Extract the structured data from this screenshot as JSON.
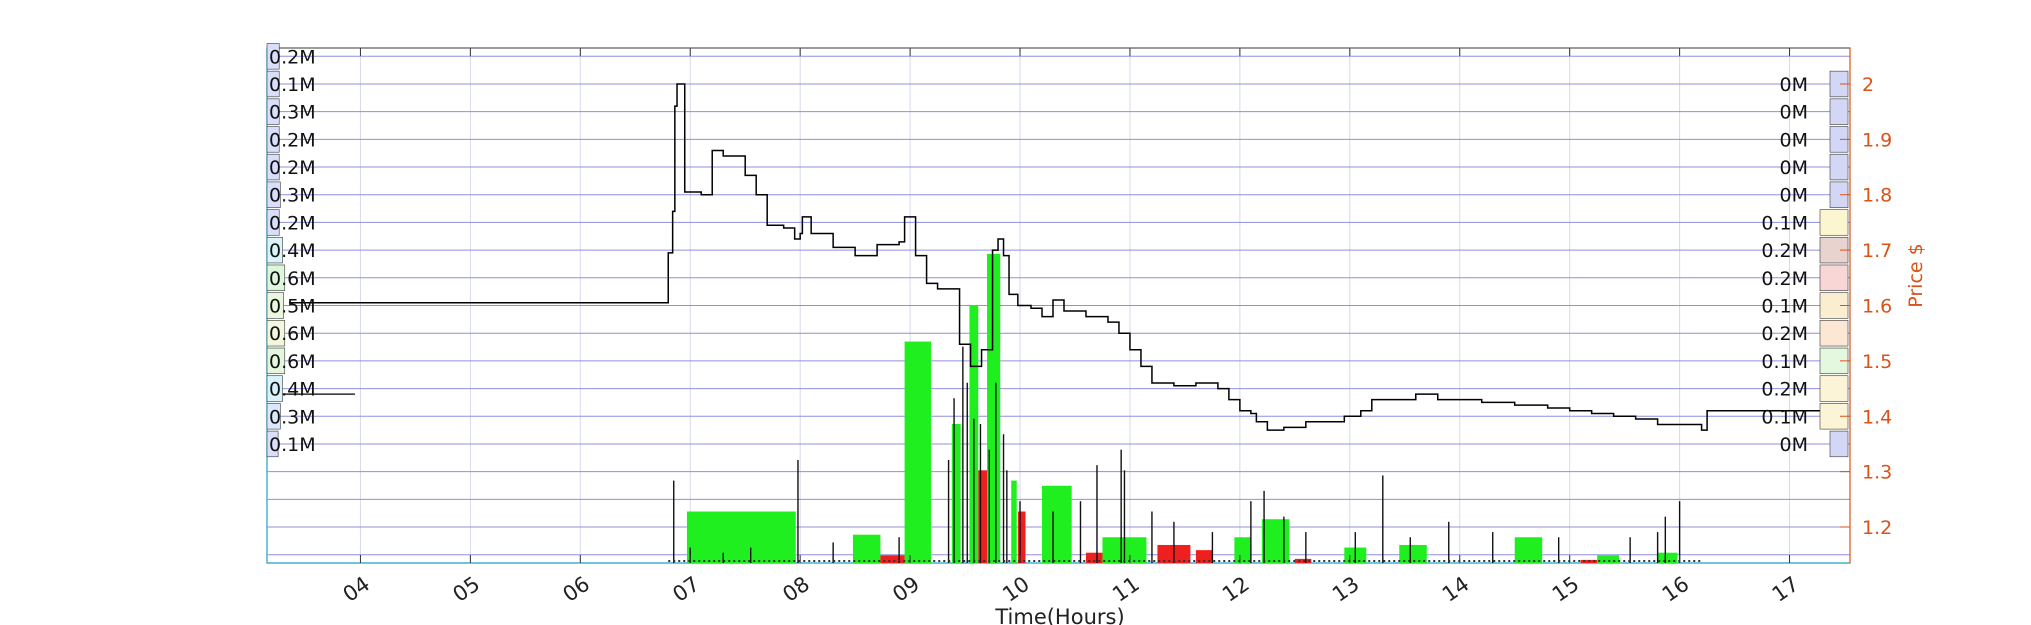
{
  "chart_data": {
    "type": "line",
    "xlabel": "Time(Hours)",
    "ylabel_right": "Price $",
    "grid": true,
    "x_range": [
      3.15,
      17.55
    ],
    "y_range": [
      1.135,
      2.065
    ],
    "x_ticks": [
      "04",
      "05",
      "06",
      "07",
      "08",
      "09",
      "10",
      "11",
      "12",
      "13",
      "14",
      "15",
      "16",
      "17"
    ],
    "y_ticks": [
      "2",
      "1.9",
      "1.8",
      "1.7",
      "1.6",
      "1.5",
      "1.4",
      "1.3",
      "1.2"
    ],
    "colors": {
      "price": "#000000",
      "buy_volume": "#1fef1f",
      "sell_volume": "#ef1f1f",
      "grid": "#8f8fe0",
      "right_axis": "#d95319",
      "frame": "#3a3a3a",
      "left_axis": "#1ba1c9"
    },
    "price_levels": [
      2.05,
      2.0,
      1.95,
      1.9,
      1.85,
      1.8,
      1.75,
      1.7,
      1.65,
      1.6,
      1.55,
      1.5,
      1.45,
      1.4,
      1.35,
      1.3,
      1.25,
      1.2,
      1.15
    ],
    "left_volume_labels": [
      {
        "price": 2.05,
        "label": "0.2M",
        "share": 0.02,
        "color": "#d9defa"
      },
      {
        "price": 2.0,
        "label": "0.1M",
        "share": 0.02,
        "color": "#d9defa"
      },
      {
        "price": 1.95,
        "label": "0.3M",
        "share": 0.02,
        "color": "#d9defa"
      },
      {
        "price": 1.9,
        "label": "0.2M",
        "share": 0.02,
        "color": "#d9defa"
      },
      {
        "price": 1.85,
        "label": "0.2M",
        "share": 0.02,
        "color": "#d9defa"
      },
      {
        "price": 1.8,
        "label": "0.3M",
        "share": 0.03,
        "color": "#d9defa"
      },
      {
        "price": 1.75,
        "label": "0.2M",
        "share": 0.02,
        "color": "#d9defa"
      },
      {
        "price": 1.7,
        "label": "0.4M",
        "share": 0.05,
        "color": "#d9f5fa"
      },
      {
        "price": 1.65,
        "label": "0.6M",
        "share": 0.07,
        "color": "#ddf7dd"
      },
      {
        "price": 1.6,
        "label": "0.5M",
        "share": 0.06,
        "color": "#e8f7dd"
      },
      {
        "price": 1.55,
        "label": "0.6M",
        "share": 0.07,
        "color": "#f2f7dd"
      },
      {
        "price": 1.5,
        "label": "0.6M",
        "share": 0.07,
        "color": "#e2f7dd"
      },
      {
        "price": 1.45,
        "label": "0.4M",
        "share": 0.05,
        "color": "#d9f3fa"
      },
      {
        "price": 1.4,
        "label": "0.3M",
        "share": 0.03,
        "color": "#d9e8fa"
      },
      {
        "price": 1.35,
        "label": "0.1M",
        "share": 0.01,
        "color": "#d9defa"
      }
    ],
    "right_volume_labels": [
      {
        "price": 2.0,
        "label": "0M",
        "color": "#d4d6f5"
      },
      {
        "price": 1.95,
        "label": "0M",
        "color": "#d4d6f5"
      },
      {
        "price": 1.9,
        "label": "0M",
        "color": "#d4d6f5"
      },
      {
        "price": 1.85,
        "label": "0M",
        "color": "#d4d6f5"
      },
      {
        "price": 1.8,
        "label": "0M",
        "color": "#d4d6f5"
      },
      {
        "price": 1.75,
        "label": "0.1M",
        "color": "#fbf6cf"
      },
      {
        "price": 1.7,
        "label": "0.2M",
        "color": "#e9d3cf"
      },
      {
        "price": 1.65,
        "label": "0.2M",
        "color": "#f9d6d6"
      },
      {
        "price": 1.6,
        "label": "0.1M",
        "color": "#fbeed0"
      },
      {
        "price": 1.55,
        "label": "0.2M",
        "color": "#fbe7d3"
      },
      {
        "price": 1.5,
        "label": "0.1M",
        "color": "#e4f7df"
      },
      {
        "price": 1.45,
        "label": "0.2M",
        "color": "#fbf4d6"
      },
      {
        "price": 1.4,
        "label": "0.1M",
        "color": "#fbf4d6"
      },
      {
        "price": 1.35,
        "label": "0M",
        "color": "#d4d6f5"
      }
    ],
    "price_series": [
      [
        3.35,
        1.605
      ],
      [
        6.78,
        1.605
      ],
      [
        6.8,
        1.695
      ],
      [
        6.84,
        1.77
      ],
      [
        6.86,
        1.96
      ],
      [
        6.88,
        2.0
      ],
      [
        6.95,
        1.805
      ],
      [
        7.05,
        1.805
      ],
      [
        7.1,
        1.8
      ],
      [
        7.2,
        1.88
      ],
      [
        7.3,
        1.87
      ],
      [
        7.5,
        1.835
      ],
      [
        7.6,
        1.8
      ],
      [
        7.7,
        1.745
      ],
      [
        7.85,
        1.74
      ],
      [
        7.95,
        1.72
      ],
      [
        8.0,
        1.73
      ],
      [
        8.02,
        1.76
      ],
      [
        8.1,
        1.73
      ],
      [
        8.3,
        1.705
      ],
      [
        8.5,
        1.69
      ],
      [
        8.7,
        1.71
      ],
      [
        8.9,
        1.715
      ],
      [
        8.95,
        1.76
      ],
      [
        9.05,
        1.69
      ],
      [
        9.15,
        1.64
      ],
      [
        9.25,
        1.63
      ],
      [
        9.35,
        1.63
      ],
      [
        9.45,
        1.53
      ],
      [
        9.55,
        1.49
      ],
      [
        9.65,
        1.52
      ],
      [
        9.75,
        1.7
      ],
      [
        9.8,
        1.72
      ],
      [
        9.85,
        1.69
      ],
      [
        9.9,
        1.62
      ],
      [
        9.98,
        1.6
      ],
      [
        10.1,
        1.595
      ],
      [
        10.2,
        1.58
      ],
      [
        10.3,
        1.61
      ],
      [
        10.4,
        1.59
      ],
      [
        10.6,
        1.58
      ],
      [
        10.8,
        1.57
      ],
      [
        10.9,
        1.55
      ],
      [
        11.0,
        1.52
      ],
      [
        11.1,
        1.49
      ],
      [
        11.2,
        1.46
      ],
      [
        11.4,
        1.455
      ],
      [
        11.6,
        1.46
      ],
      [
        11.8,
        1.45
      ],
      [
        11.9,
        1.43
      ],
      [
        12.0,
        1.41
      ],
      [
        12.1,
        1.405
      ],
      [
        12.15,
        1.39
      ],
      [
        12.25,
        1.375
      ],
      [
        12.4,
        1.38
      ],
      [
        12.6,
        1.39
      ],
      [
        12.8,
        1.39
      ],
      [
        12.95,
        1.4
      ],
      [
        13.1,
        1.41
      ],
      [
        13.2,
        1.43
      ],
      [
        13.4,
        1.43
      ],
      [
        13.6,
        1.44
      ],
      [
        13.8,
        1.43
      ],
      [
        14.0,
        1.43
      ],
      [
        14.2,
        1.425
      ],
      [
        14.5,
        1.42
      ],
      [
        14.8,
        1.415
      ],
      [
        15.0,
        1.41
      ],
      [
        15.2,
        1.405
      ],
      [
        15.4,
        1.4
      ],
      [
        15.6,
        1.395
      ],
      [
        15.8,
        1.385
      ],
      [
        16.2,
        1.375
      ],
      [
        16.25,
        1.41
      ],
      [
        17.5,
        1.41
      ]
    ],
    "buy_volume_bars": [
      {
        "x0": 6.97,
        "x1": 7.96,
        "share": 0.1
      },
      {
        "x0": 8.48,
        "x1": 8.73,
        "share": 0.055
      },
      {
        "x0": 8.95,
        "x1": 9.19,
        "share": 0.43
      },
      {
        "x0": 9.38,
        "x1": 9.46,
        "share": 0.27
      },
      {
        "x0": 9.54,
        "x1": 9.62,
        "share": 0.5
      },
      {
        "x0": 9.7,
        "x1": 9.82,
        "share": 0.6
      },
      {
        "x0": 9.92,
        "x1": 9.97,
        "share": 0.16
      },
      {
        "x0": 10.2,
        "x1": 10.47,
        "share": 0.15
      },
      {
        "x0": 10.75,
        "x1": 11.15,
        "share": 0.05
      },
      {
        "x0": 11.95,
        "x1": 12.1,
        "share": 0.05
      },
      {
        "x0": 12.2,
        "x1": 12.45,
        "share": 0.085
      },
      {
        "x0": 12.95,
        "x1": 13.15,
        "share": 0.03
      },
      {
        "x0": 13.45,
        "x1": 13.7,
        "share": 0.035
      },
      {
        "x0": 14.5,
        "x1": 14.75,
        "share": 0.05
      },
      {
        "x0": 15.25,
        "x1": 15.45,
        "share": 0.015
      },
      {
        "x0": 15.8,
        "x1": 15.98,
        "share": 0.02
      }
    ],
    "sell_volume_bars": [
      {
        "x0": 8.73,
        "x1": 8.95,
        "share": 0.015
      },
      {
        "x0": 9.62,
        "x1": 9.7,
        "share": 0.18
      },
      {
        "x0": 9.98,
        "x1": 10.05,
        "share": 0.1
      },
      {
        "x0": 10.6,
        "x1": 10.75,
        "share": 0.02
      },
      {
        "x0": 11.25,
        "x1": 11.55,
        "share": 0.035
      },
      {
        "x0": 11.6,
        "x1": 11.75,
        "share": 0.025
      },
      {
        "x0": 12.5,
        "x1": 12.65,
        "share": 0.008
      },
      {
        "x0": 15.1,
        "x1": 15.25,
        "share": 0.006
      }
    ],
    "volume_spikes": [
      [
        6.85,
        0.16
      ],
      [
        7.0,
        0.03
      ],
      [
        7.3,
        0.02
      ],
      [
        7.55,
        0.03
      ],
      [
        7.98,
        0.2
      ],
      [
        8.3,
        0.04
      ],
      [
        8.9,
        0.05
      ],
      [
        9.35,
        0.2
      ],
      [
        9.4,
        0.32
      ],
      [
        9.48,
        0.42
      ],
      [
        9.52,
        0.35
      ],
      [
        9.58,
        0.28
      ],
      [
        9.64,
        0.27
      ],
      [
        9.72,
        0.22
      ],
      [
        9.78,
        0.35
      ],
      [
        9.85,
        0.25
      ],
      [
        9.88,
        0.18
      ],
      [
        10.0,
        0.12
      ],
      [
        10.3,
        0.1
      ],
      [
        10.55,
        0.12
      ],
      [
        10.7,
        0.19
      ],
      [
        10.92,
        0.22
      ],
      [
        10.95,
        0.18
      ],
      [
        11.2,
        0.1
      ],
      [
        11.4,
        0.08
      ],
      [
        11.75,
        0.06
      ],
      [
        12.1,
        0.12
      ],
      [
        12.22,
        0.14
      ],
      [
        12.4,
        0.09
      ],
      [
        12.6,
        0.06
      ],
      [
        13.05,
        0.06
      ],
      [
        13.3,
        0.17
      ],
      [
        13.55,
        0.05
      ],
      [
        13.9,
        0.08
      ],
      [
        14.3,
        0.06
      ],
      [
        14.9,
        0.05
      ],
      [
        15.55,
        0.05
      ],
      [
        15.8,
        0.06
      ],
      [
        15.87,
        0.09
      ],
      [
        16.0,
        0.12
      ]
    ]
  }
}
